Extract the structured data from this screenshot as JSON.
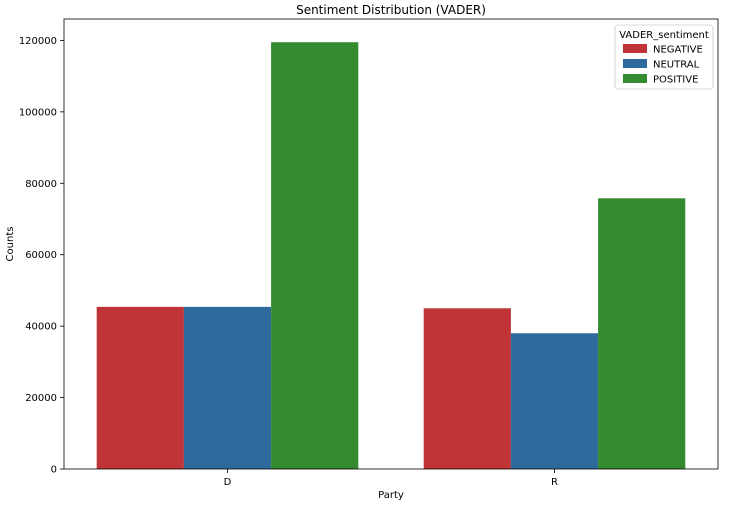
{
  "chart_data": {
    "type": "bar",
    "title": "Sentiment Distribution (VADER)",
    "xlabel": "Party",
    "ylabel": "Counts",
    "categories": [
      "D",
      "R"
    ],
    "ylim": [
      0,
      126000
    ],
    "yticks": [
      0,
      20000,
      40000,
      60000,
      80000,
      100000,
      120000
    ],
    "grid": false,
    "legend": {
      "title": "VADER_sentiment",
      "placement": "top-right"
    },
    "series": [
      {
        "name": "NEGATIVE",
        "color": "#c03336",
        "values": [
          45400,
          45000
        ]
      },
      {
        "name": "NEUTRAL",
        "color": "#2e6b9c",
        "values": [
          45400,
          38000
        ]
      },
      {
        "name": "POSITIVE",
        "color": "#338a2f",
        "values": [
          119500,
          75800
        ]
      }
    ]
  }
}
